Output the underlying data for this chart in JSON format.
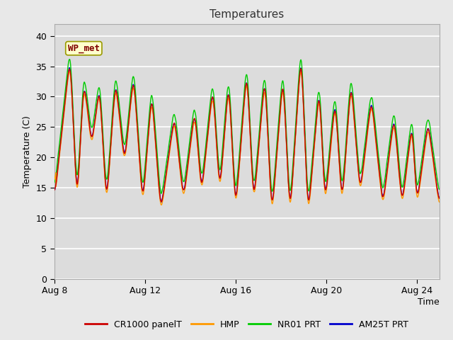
{
  "title": "Temperatures",
  "xlabel": "Time",
  "ylabel": "Temperature (C)",
  "ylim": [
    0,
    42
  ],
  "yticks": [
    0,
    5,
    10,
    15,
    20,
    25,
    30,
    35,
    40
  ],
  "xtick_labels": [
    "Aug 8",
    "Aug 12",
    "Aug 16",
    "Aug 20",
    "Aug 24"
  ],
  "annotation_text": "WP_met",
  "series_colors": [
    "#cc0000",
    "#ff9900",
    "#00cc00",
    "#0000cc"
  ],
  "series_labels": [
    "CR1000 panelT",
    "HMP",
    "NR01 PRT",
    "AM25T PRT"
  ],
  "fig_facecolor": "#e8e8e8",
  "plot_facecolor": "#dcdcdc",
  "grid_color": "#ffffff",
  "num_days": 17,
  "peak_times": [
    0.7,
    1.3,
    2.0,
    2.7,
    3.5,
    4.3,
    5.3,
    6.2,
    7.0,
    7.7,
    8.5,
    9.3,
    10.1,
    10.9,
    11.7,
    12.4,
    13.1,
    14.0,
    15.0,
    15.8,
    16.5
  ],
  "peak_maxes_base": [
    37,
    33,
    32,
    33,
    34,
    31,
    27,
    28,
    32,
    33,
    35,
    34,
    34,
    38,
    32,
    30,
    33,
    30,
    27,
    26,
    26
  ],
  "trough_times": [
    0.0,
    1.0,
    1.65,
    2.3,
    3.1,
    3.9,
    4.7,
    5.7,
    6.5,
    7.3,
    8.0,
    8.8,
    9.6,
    10.4,
    11.2,
    11.95,
    12.7,
    13.5,
    14.5,
    15.35,
    16.0,
    17.0
  ],
  "trough_mins_base": [
    13,
    12,
    22,
    12,
    19,
    12,
    11,
    13,
    14,
    14,
    11,
    12,
    10,
    10,
    10,
    12,
    12,
    14,
    12,
    12,
    12,
    12
  ]
}
